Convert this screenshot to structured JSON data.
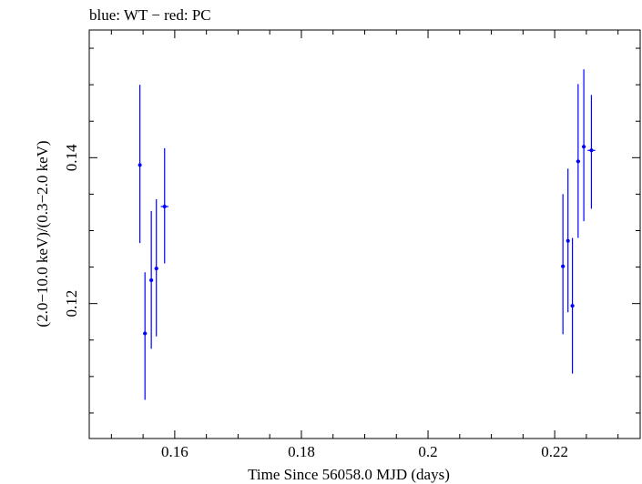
{
  "chart_data": {
    "type": "scatter",
    "title": "blue: WT − red: PC",
    "xlabel": "Time Since 56058.0 MJD (days)",
    "ylabel": "(2.0−10.0 keV)/(0.3−2.0 keV)",
    "xlim": [
      0.1465,
      0.2335
    ],
    "ylim": [
      0.1015,
      0.1575
    ],
    "xticks": [
      0.16,
      0.18,
      0.2,
      0.22
    ],
    "xtick_labels": [
      "0.16",
      "0.18",
      "0.2",
      "0.22"
    ],
    "yticks": [
      0.12,
      0.14
    ],
    "ytick_labels": [
      "0.12",
      "0.14"
    ],
    "grid": false,
    "colors": {
      "WT": "#0000ff",
      "axes": "#000000"
    },
    "series": [
      {
        "name": "WT",
        "color": "#0000ff",
        "points": [
          {
            "x": 0.1545,
            "y": 0.139,
            "xerr": 0.0002,
            "ylo": 0.1283,
            "yhi": 0.15
          },
          {
            "x": 0.1553,
            "y": 0.1159,
            "xerr": 0.0003,
            "ylo": 0.1068,
            "yhi": 0.1243
          },
          {
            "x": 0.1563,
            "y": 0.1232,
            "xerr": 0.0003,
            "ylo": 0.1138,
            "yhi": 0.1327
          },
          {
            "x": 0.1571,
            "y": 0.1248,
            "xerr": 0.0003,
            "ylo": 0.1155,
            "yhi": 0.1343
          },
          {
            "x": 0.1584,
            "y": 0.1333,
            "xerr": 0.0006,
            "ylo": 0.1255,
            "yhi": 0.1413
          },
          {
            "x": 0.2213,
            "y": 0.1251,
            "xerr": 0.0003,
            "ylo": 0.1158,
            "yhi": 0.135
          },
          {
            "x": 0.2221,
            "y": 0.1286,
            "xerr": 0.0002,
            "ylo": 0.1188,
            "yhi": 0.1385
          },
          {
            "x": 0.2228,
            "y": 0.1197,
            "xerr": 0.0003,
            "ylo": 0.1104,
            "yhi": 0.129
          },
          {
            "x": 0.2237,
            "y": 0.1395,
            "xerr": 0.0003,
            "ylo": 0.129,
            "yhi": 0.1501
          },
          {
            "x": 0.2246,
            "y": 0.1415,
            "xerr": 0.0003,
            "ylo": 0.1313,
            "yhi": 0.1521
          },
          {
            "x": 0.2258,
            "y": 0.141,
            "xerr": 0.0006,
            "ylo": 0.133,
            "yhi": 0.1486
          }
        ]
      }
    ]
  }
}
